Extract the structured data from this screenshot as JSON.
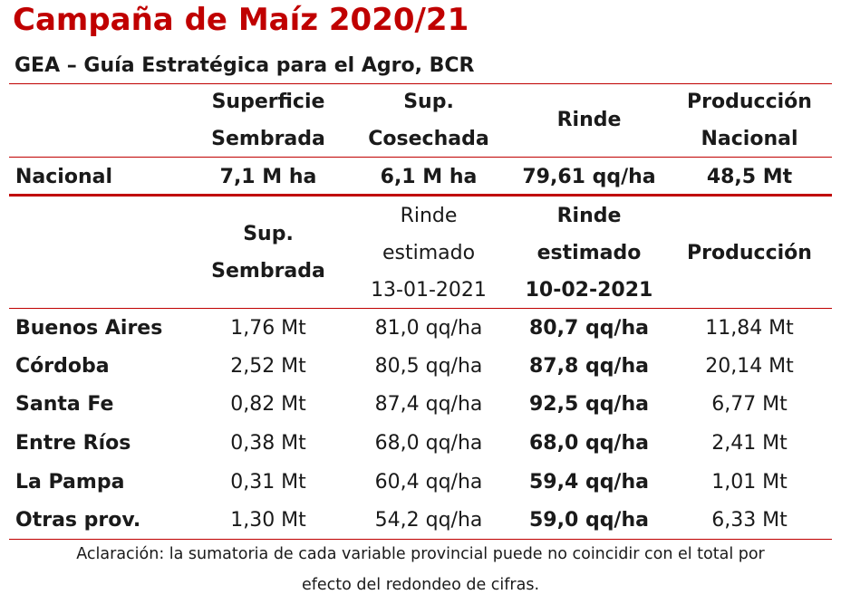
{
  "title": "Campaña de Maíz 2020/21",
  "subtitle": "GEA – Guía Estratégica para el Agro, BCR",
  "national_table": {
    "headers": [
      [
        "Superficie",
        "Sembrada"
      ],
      [
        "Sup.",
        "Cosechada"
      ],
      [
        "Rinde"
      ],
      [
        "Producción",
        "Nacional"
      ]
    ],
    "row": {
      "label": "Nacional",
      "values": [
        "7,1 M ha",
        "6,1 M ha",
        "79,61 qq/ha",
        "48,5 Mt"
      ]
    }
  },
  "province_table": {
    "headers": [
      [
        "Sup.",
        "Sembrada"
      ],
      [
        "Rinde",
        "estimado",
        "13-01-2021"
      ],
      [
        "Rinde",
        "estimado",
        "10-02-2021"
      ],
      [
        "Producción"
      ]
    ],
    "rows": [
      {
        "label": "Buenos Aires",
        "values": [
          "1,76 Mt",
          "81,0 qq/ha",
          "80,7 qq/ha",
          "11,84 Mt"
        ]
      },
      {
        "label": "Córdoba",
        "values": [
          "2,52 Mt",
          "80,5 qq/ha",
          "87,8 qq/ha",
          "20,14 Mt"
        ]
      },
      {
        "label": "Santa Fe",
        "values": [
          "0,82 Mt",
          "87,4 qq/ha",
          "92,5 qq/ha",
          "6,77 Mt"
        ]
      },
      {
        "label": "Entre Ríos",
        "values": [
          "0,38 Mt",
          "68,0 qq/ha",
          "68,0 qq/ha",
          "2,41 Mt"
        ]
      },
      {
        "label": "La Pampa",
        "values": [
          "0,31 Mt",
          "60,4 qq/ha",
          "59,4 qq/ha",
          "1,01 Mt"
        ]
      },
      {
        "label": "Otras prov.",
        "values": [
          "1,30 Mt",
          "54,2 qq/ha",
          "59,0 qq/ha",
          "6,33 Mt"
        ]
      }
    ]
  },
  "footnote": [
    "Aclaración: la sumatoria de cada variable provincial puede no coincidir con el total por",
    "efecto del redondeo de cifras."
  ],
  "colors": {
    "accent": "#c00000",
    "text": "#1a1a1a"
  }
}
